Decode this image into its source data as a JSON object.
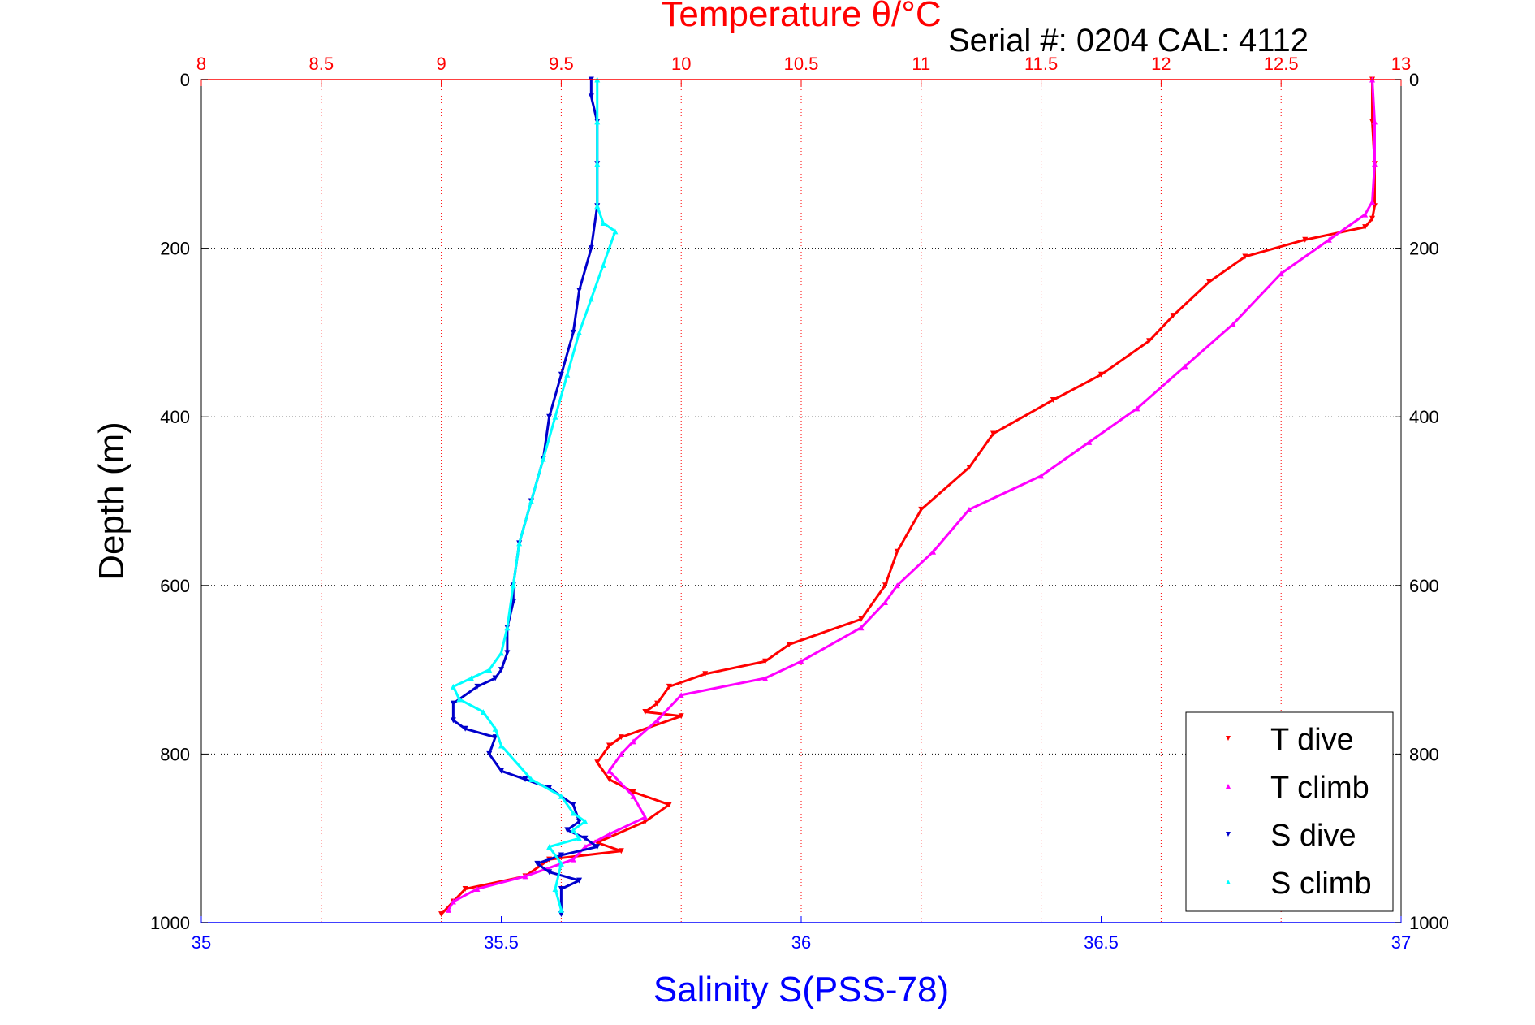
{
  "chart_data": {
    "type": "scatter",
    "title": "Temperature θ/°C",
    "subtitle": "Serial #: 0204  CAL: 4112",
    "xlabel": "Salinity S(PSS-78)",
    "ylabel": "Depth (m)",
    "ylim": [
      0,
      1000
    ],
    "y_reversed": true,
    "x_salinity_lim": [
      35,
      37
    ],
    "x_temperature_lim": [
      8,
      13
    ],
    "x_salinity_ticks": [
      "35",
      "35.5",
      "36",
      "36.5",
      "37"
    ],
    "x_temperature_ticks": [
      "8",
      "8.5",
      "9",
      "9.5",
      "10",
      "10.5",
      "11",
      "11.5",
      "12",
      "12.5",
      "13"
    ],
    "y_ticks": [
      "0",
      "200",
      "400",
      "600",
      "800",
      "1000"
    ],
    "grid": true,
    "legend_position": "bottom-right",
    "series": [
      {
        "name": "T dive",
        "axis": "temperature",
        "color": "#ff0000",
        "marker": "triangle-down",
        "x": [
          12.88,
          12.88,
          12.89,
          12.89,
          12.88,
          12.85,
          12.6,
          12.35,
          12.2,
          12.05,
          11.95,
          11.75,
          11.55,
          11.3,
          11.2,
          11.0,
          10.9,
          10.85,
          10.75,
          10.45,
          10.35,
          10.1,
          9.95,
          9.9,
          9.85,
          10.0,
          9.75,
          9.7,
          9.65,
          9.7,
          9.8,
          9.95,
          9.85,
          9.65,
          9.75,
          9.45,
          9.35,
          9.1,
          9.05,
          9.0
        ],
        "y": [
          0,
          50,
          100,
          150,
          165,
          175,
          190,
          210,
          240,
          280,
          310,
          350,
          380,
          420,
          460,
          510,
          560,
          600,
          640,
          670,
          690,
          705,
          720,
          740,
          750,
          755,
          780,
          790,
          810,
          830,
          845,
          860,
          880,
          905,
          915,
          925,
          945,
          960,
          975,
          990
        ]
      },
      {
        "name": "T climb",
        "axis": "temperature",
        "color": "#ff00ff",
        "marker": "triangle-up",
        "x": [
          12.88,
          12.89,
          12.89,
          12.88,
          12.85,
          12.7,
          12.5,
          12.3,
          12.1,
          11.9,
          11.7,
          11.5,
          11.2,
          11.05,
          10.9,
          10.85,
          10.75,
          10.5,
          10.35,
          10.0,
          9.9,
          9.8,
          9.75,
          9.7,
          9.8,
          9.85,
          9.7,
          9.6,
          9.55,
          9.35,
          9.15,
          9.05,
          9.03
        ],
        "y": [
          0,
          50,
          100,
          145,
          160,
          190,
          230,
          290,
          340,
          390,
          430,
          470,
          510,
          560,
          600,
          620,
          650,
          690,
          710,
          730,
          760,
          785,
          800,
          820,
          850,
          875,
          895,
          910,
          925,
          945,
          960,
          975,
          985
        ]
      },
      {
        "name": "S dive",
        "axis": "salinity",
        "color": "#0000cc",
        "marker": "triangle-down",
        "x": [
          35.65,
          35.65,
          35.66,
          35.66,
          35.66,
          35.65,
          35.63,
          35.62,
          35.6,
          35.58,
          35.57,
          35.55,
          35.53,
          35.52,
          35.52,
          35.51,
          35.51,
          35.5,
          35.49,
          35.46,
          35.42,
          35.42,
          35.44,
          35.49,
          35.48,
          35.5,
          35.54,
          35.58,
          35.62,
          35.63,
          35.61,
          35.64,
          35.66,
          35.6,
          35.56,
          35.58,
          35.63,
          35.6,
          35.6
        ],
        "y": [
          0,
          20,
          50,
          100,
          150,
          200,
          250,
          300,
          350,
          400,
          450,
          500,
          550,
          600,
          620,
          650,
          680,
          700,
          710,
          720,
          740,
          760,
          770,
          780,
          800,
          820,
          830,
          840,
          860,
          880,
          890,
          900,
          910,
          920,
          930,
          940,
          950,
          960,
          990
        ]
      },
      {
        "name": "S climb",
        "axis": "salinity",
        "color": "#00ffff",
        "marker": "triangle-up",
        "x": [
          35.66,
          35.66,
          35.66,
          35.66,
          35.67,
          35.69,
          35.67,
          35.65,
          35.63,
          35.61,
          35.59,
          35.57,
          35.55,
          35.53,
          35.52,
          35.51,
          35.5,
          35.48,
          35.45,
          35.42,
          35.43,
          35.47,
          35.49,
          35.5,
          35.55,
          35.6,
          35.62,
          35.64,
          35.62,
          35.63,
          35.58,
          35.6,
          35.59,
          35.6
        ],
        "y": [
          0,
          50,
          100,
          150,
          170,
          180,
          220,
          260,
          300,
          350,
          400,
          450,
          500,
          550,
          600,
          650,
          680,
          700,
          710,
          720,
          735,
          750,
          770,
          790,
          830,
          850,
          870,
          880,
          890,
          900,
          910,
          930,
          960,
          985
        ]
      }
    ]
  }
}
